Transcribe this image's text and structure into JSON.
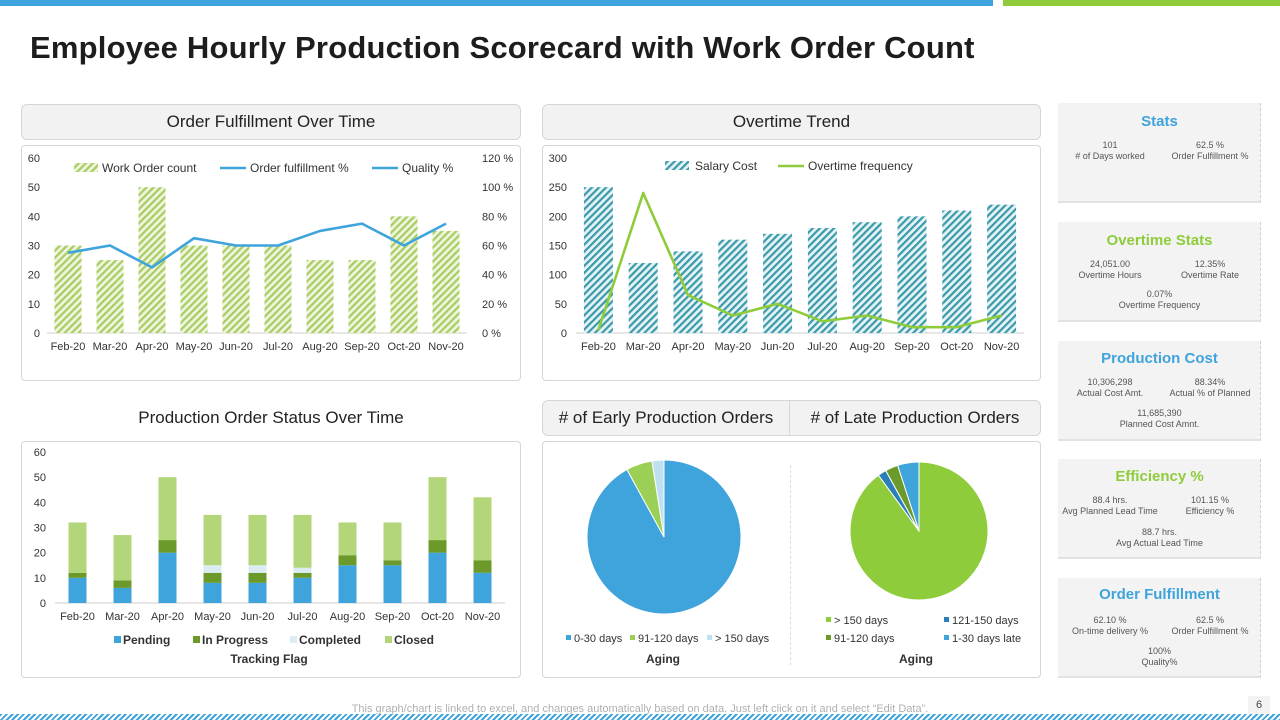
{
  "page": {
    "title": "Employee Hourly Production Scorecard with Work Order Count",
    "footer_note": "This graph/chart is linked to excel, and changes automatically based on data. Just left click on it and select “Edit Data”.",
    "page_number": "6"
  },
  "colors": {
    "blue": "#3fa3dc",
    "green": "#8fcc3c",
    "light_green": "#b3d67a",
    "teal": "#2f9aa8",
    "dark_green": "#6b9a2a",
    "completed": "#dcecf5",
    "stat_title_blue": "#3fa3dc",
    "stat_title_green": "#8fcc3c"
  },
  "panels": {
    "order_fulfillment": "Order Fulfillment Over Time",
    "overtime_trend": "Overtime Trend",
    "production_order_status": "Production Order Status Over Time",
    "early_orders": "# of Early Production Orders",
    "late_orders": "# of Late Production Orders"
  },
  "stats": {
    "stats": {
      "title": "Stats",
      "items": [
        {
          "value": "101",
          "label": "# of Days worked"
        },
        {
          "value": "62.5 %",
          "label": "Order Fulfillment %"
        }
      ]
    },
    "overtime": {
      "title": "Overtime Stats",
      "items": [
        {
          "value": "24,051.00",
          "label": "Overtime Hours"
        },
        {
          "value": "12.35%",
          "label": "Overtime Rate"
        },
        {
          "value": "0.07%",
          "label": "Overtime Frequency"
        }
      ]
    },
    "production_cost": {
      "title": "Production Cost",
      "items": [
        {
          "value": "10,306,298",
          "label": "Actual Cost Amt."
        },
        {
          "value": "88.34%",
          "label": "Actual % of Planned"
        },
        {
          "value": "11,685,390",
          "label": "Planned Cost Amnt."
        }
      ]
    },
    "efficiency": {
      "title": "Efficiency %",
      "items": [
        {
          "value": "88.4 hrs.",
          "label": "Avg Planned Lead Time"
        },
        {
          "value": "101.15 %",
          "label": "Efficiency %"
        },
        {
          "value": "88.7 hrs.",
          "label": "Avg Actual Lead Time"
        }
      ]
    },
    "order_fulfillment": {
      "title": "Order Fulfillment",
      "items": [
        {
          "value": "62.10 %",
          "label": "On-time delivery %"
        },
        {
          "value": "62.5 %",
          "label": "Order Fulfillment %"
        },
        {
          "value": "100%",
          "label": "Quality%"
        }
      ]
    }
  },
  "chart_data": [
    {
      "id": "order_fulfillment",
      "type": "bar",
      "title": "Order Fulfillment Over Time",
      "categories": [
        "Feb-20",
        "Mar-20",
        "Apr-20",
        "May-20",
        "Jun-20",
        "Jul-20",
        "Aug-20",
        "Sep-20",
        "Oct-20",
        "Nov-20"
      ],
      "series": [
        {
          "name": "Work Order count",
          "type": "bar",
          "axis": "left",
          "values": [
            30,
            25,
            50,
            30,
            30,
            30,
            25,
            25,
            40,
            35
          ]
        },
        {
          "name": "Order fulfillment %",
          "type": "line",
          "axis": "right",
          "values": [
            55,
            60,
            45,
            65,
            60,
            60,
            70,
            75,
            60,
            75
          ]
        },
        {
          "name": "Quality %",
          "type": "line",
          "axis": "right",
          "values": [
            55,
            60,
            45,
            65,
            60,
            60,
            70,
            75,
            60,
            75
          ]
        }
      ],
      "ylim": [
        0,
        60
      ],
      "y_ticks": [
        "0",
        "10",
        "20",
        "30",
        "40",
        "50",
        "60"
      ],
      "y2lim": [
        0,
        120
      ],
      "y2_ticks": [
        "0 %",
        "20 %",
        "40 %",
        "60 %",
        "80 %",
        "100 %",
        "120 %"
      ],
      "legend": "top"
    },
    {
      "id": "overtime_trend",
      "type": "bar",
      "title": "Overtime Trend",
      "categories": [
        "Feb-20",
        "Mar-20",
        "Apr-20",
        "May-20",
        "Jun-20",
        "Jul-20",
        "Aug-20",
        "Sep-20",
        "Oct-20",
        "Nov-20"
      ],
      "series": [
        {
          "name": "Salary Cost",
          "type": "bar",
          "values": [
            250,
            120,
            140,
            160,
            170,
            180,
            190,
            200,
            210,
            220
          ]
        },
        {
          "name": "Overtime frequency",
          "type": "line",
          "values": [
            5,
            240,
            65,
            30,
            50,
            20,
            30,
            10,
            10,
            30
          ]
        }
      ],
      "ylim": [
        0,
        300
      ],
      "y_ticks": [
        "0",
        "50",
        "100",
        "150",
        "200",
        "250",
        "300"
      ],
      "legend": "top"
    },
    {
      "id": "production_order_status",
      "type": "bar",
      "stacked": true,
      "title": "Production Order Status Over Time",
      "categories": [
        "Feb-20",
        "Mar-20",
        "Apr-20",
        "May-20",
        "Jun-20",
        "Jul-20",
        "Aug-20",
        "Sep-20",
        "Oct-20",
        "Nov-20"
      ],
      "series": [
        {
          "name": "Pending",
          "values": [
            10,
            6,
            20,
            8,
            8,
            10,
            15,
            15,
            20,
            12
          ]
        },
        {
          "name": "In Progress",
          "values": [
            2,
            3,
            5,
            4,
            4,
            2,
            4,
            2,
            5,
            5
          ]
        },
        {
          "name": "Completed",
          "values": [
            0,
            0,
            0,
            3,
            3,
            2,
            0,
            0,
            0,
            0
          ]
        },
        {
          "name": "Closed",
          "values": [
            20,
            18,
            25,
            20,
            20,
            21,
            13,
            15,
            25,
            25
          ]
        }
      ],
      "ylim": [
        0,
        60
      ],
      "y_ticks": [
        "0",
        "10",
        "20",
        "30",
        "40",
        "50",
        "60"
      ],
      "xlabel": "Tracking Flag",
      "legend": "bottom"
    },
    {
      "id": "early_orders",
      "type": "pie",
      "title": "# of Early Production Orders",
      "labels": [
        "0-30 days",
        "91-120 days",
        "> 150 days"
      ],
      "values": [
        92,
        5.5,
        2.5
      ],
      "xlabel": "Aging",
      "legend": "bottom"
    },
    {
      "id": "late_orders",
      "type": "pie",
      "title": "# of Late Production Orders",
      "labels": [
        "> 150 days",
        "121-150 days",
        "91-120 days",
        "1-30 days late"
      ],
      "values": [
        90,
        2,
        3,
        5
      ],
      "xlabel": "Aging",
      "legend": "bottom"
    }
  ]
}
